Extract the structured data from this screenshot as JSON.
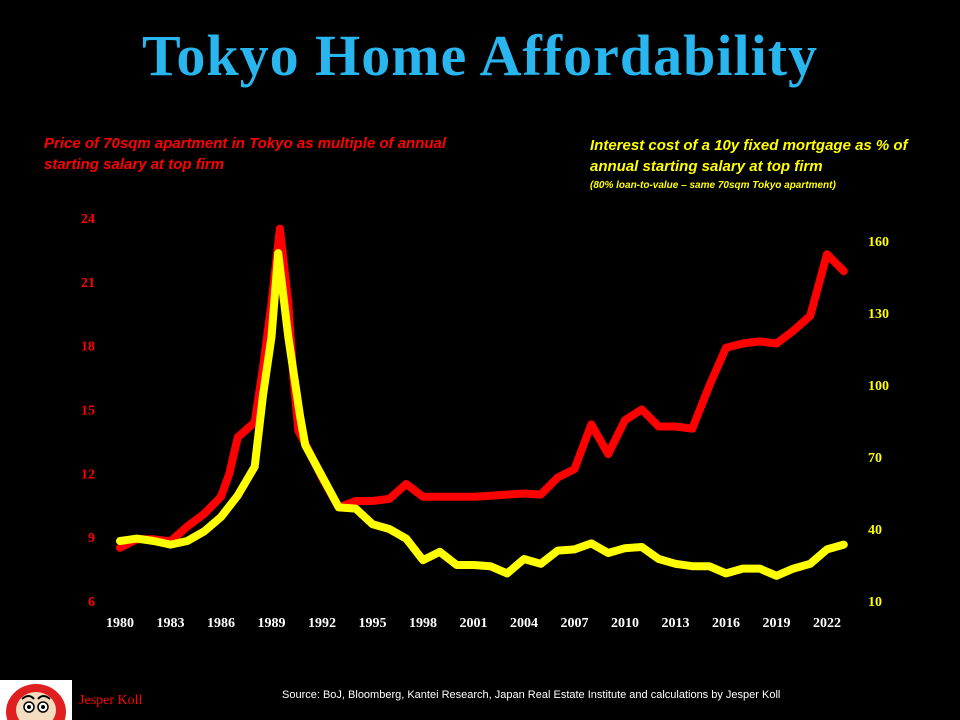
{
  "title": "Tokyo Home Affordability",
  "left_description": "Price of 70sqm apartment in Tokyo as multiple of annual starting salary at top firm",
  "right_description": "Interest cost of a 10y fixed mortgage as % of annual starting salary at top firm",
  "right_subdescription": "(80% loan-to-value – same 70sqm Tokyo apartment)",
  "source": "Source: BoJ, Bloomberg, Kantei Research, Japan Real Estate Institute and calculations by Jesper Koll",
  "author": "Jesper Koll",
  "colors": {
    "background": "#000000",
    "title": "#29b6ef",
    "left_series": "#ff0000",
    "right_series": "#ffff00",
    "axis_text": "#ffffff"
  },
  "chart_data": {
    "type": "line",
    "x_ticks": [
      "1980",
      "1983",
      "1986",
      "1989",
      "1992",
      "1995",
      "1998",
      "2001",
      "2004",
      "2007",
      "2010",
      "2013",
      "2016",
      "2019",
      "2022"
    ],
    "left_axis": {
      "ticks": [
        "6",
        "9",
        "12",
        "15",
        "18",
        "21",
        "24"
      ],
      "ylim": [
        6,
        24
      ]
    },
    "right_axis": {
      "ticks": [
        "10",
        "40",
        "70",
        "100",
        "130",
        "160"
      ],
      "ylim": [
        10,
        160
      ]
    },
    "grid": false,
    "legend": "none",
    "series": [
      {
        "axis": "left",
        "color": "#ff0000",
        "x": [
          1980,
          1981,
          1982,
          1983,
          1984,
          1985,
          1986,
          1986.5,
          1987,
          1988,
          1988.5,
          1989,
          1989.5,
          1990,
          1990.3,
          1990.6,
          1991,
          1992,
          1993,
          1994,
          1995,
          1996,
          1997,
          1998,
          1999,
          2000,
          2001,
          2002,
          2003,
          2004,
          2005,
          2006,
          2007,
          2008,
          2009,
          2010,
          2011,
          2012,
          2013,
          2014,
          2015,
          2016,
          2017,
          2018,
          2019,
          2020,
          2021,
          2022,
          2023
        ],
        "y": [
          8.5,
          8.9,
          8.9,
          8.8,
          9.5,
          10.1,
          10.9,
          12.0,
          13.7,
          14.4,
          17.0,
          20.0,
          23.5,
          20.0,
          16.5,
          14.0,
          13.4,
          11.8,
          10.4,
          10.7,
          10.7,
          10.8,
          11.5,
          10.9,
          10.9,
          10.9,
          10.9,
          10.95,
          11.0,
          11.05,
          11.0,
          11.8,
          12.2,
          14.3,
          12.9,
          14.5,
          15.0,
          14.2,
          14.2,
          14.1,
          16.1,
          17.9,
          18.1,
          18.2,
          18.1,
          18.7,
          19.4,
          22.3,
          21.5
        ]
      },
      {
        "axis": "right",
        "color": "#ffff00",
        "x": [
          1980,
          1981,
          1982,
          1983,
          1984,
          1985,
          1986,
          1987,
          1988,
          1988.5,
          1989,
          1989.4,
          1990,
          1990.7,
          1991,
          1992,
          1993,
          1994,
          1995,
          1996,
          1997,
          1998,
          1999,
          2000,
          2001,
          2002,
          2003,
          2004,
          2005,
          2006,
          2007,
          2008,
          2009,
          2010,
          2011,
          2012,
          2013,
          2014,
          2015,
          2016,
          2017,
          2018,
          2019,
          2020,
          2021,
          2022,
          2023
        ],
        "y": [
          35,
          36,
          35,
          33.5,
          35,
          39,
          45,
          54,
          66,
          96,
          120,
          155,
          120,
          87,
          75,
          62,
          49,
          48.5,
          42,
          40,
          36,
          27,
          30.5,
          25,
          25,
          24.5,
          21.5,
          27.5,
          25.5,
          31,
          31.5,
          34,
          30,
          32,
          32.5,
          27.5,
          25.5,
          24.5,
          24.5,
          21.5,
          23.5,
          23.5,
          20.5,
          23.5,
          25.5,
          31.5,
          33.5
        ]
      }
    ]
  }
}
